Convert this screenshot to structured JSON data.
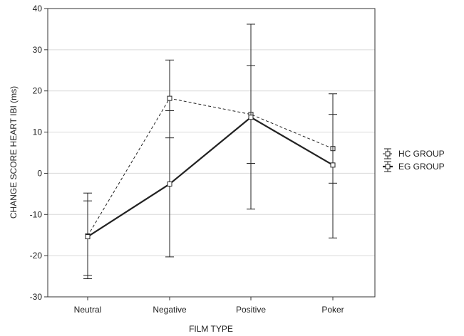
{
  "chart_data": {
    "type": "line",
    "title": "",
    "xlabel": "FILM TYPE",
    "ylabel": "CHANGE SCORE HEART IBI (ms)",
    "ylim": [
      -30,
      40
    ],
    "yticks": [
      -30,
      -20,
      -10,
      0,
      10,
      20,
      30,
      40
    ],
    "ytick_labels": [
      "-30",
      "-20",
      "-10",
      "0",
      "10",
      "20",
      "30",
      "40"
    ],
    "categories": [
      "Neutral",
      "Negative",
      "Positive",
      "Poker"
    ],
    "grid": "horizontal",
    "legend_position": "right",
    "series": [
      {
        "name": "HC GROUP",
        "line_style": "dashed",
        "marker": "square",
        "values": [
          -15.2,
          18.2,
          14.3,
          6.0
        ],
        "error_upper": [
          -4.8,
          27.5,
          36.2,
          19.3
        ],
        "error_lower": [
          -25.6,
          8.6,
          -8.7,
          -2.4
        ]
      },
      {
        "name": "EG GROUP",
        "line_style": "solid",
        "marker": "square",
        "values": [
          -15.4,
          -2.6,
          13.6,
          2.0
        ],
        "error_upper": [
          -6.7,
          15.2,
          26.1,
          14.3
        ],
        "error_lower": [
          -24.8,
          -20.3,
          2.4,
          -15.7
        ]
      }
    ]
  }
}
